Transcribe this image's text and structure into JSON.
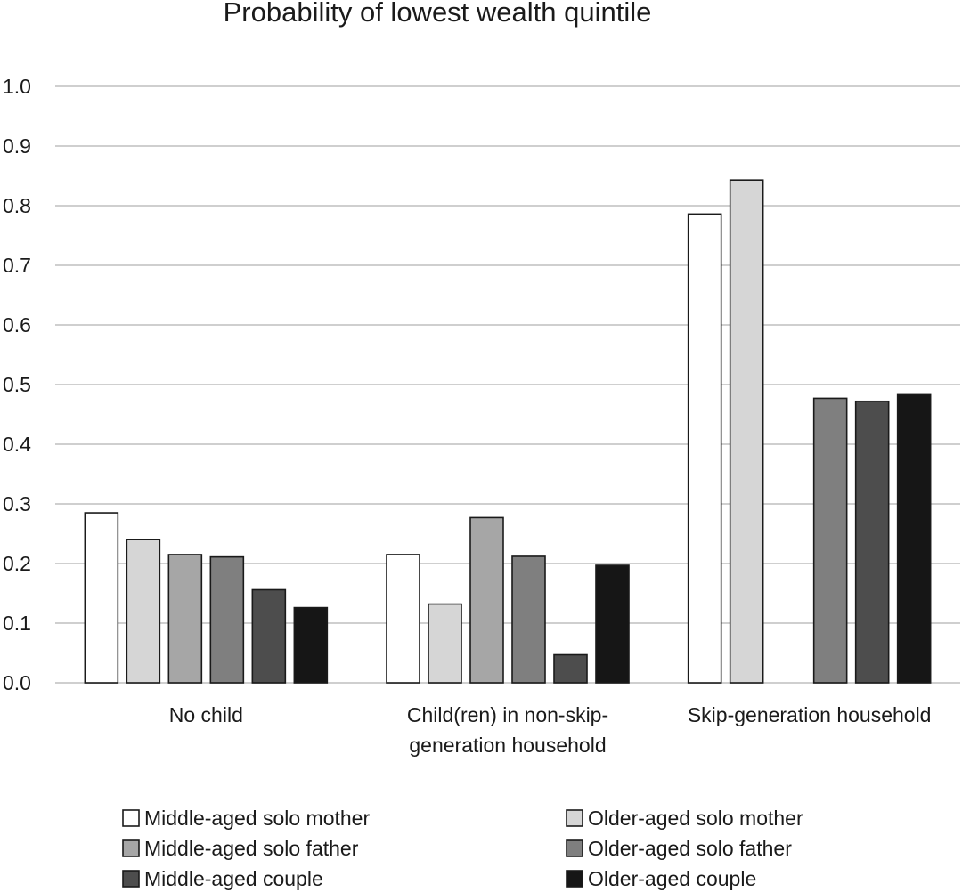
{
  "chart_data": {
    "type": "bar",
    "title": "Probability of lowest wealth quintile",
    "xlabel": "",
    "ylabel": "",
    "ylim": [
      0,
      1.0
    ],
    "yticks": [
      "0.0",
      "0.1",
      "0.2",
      "0.3",
      "0.4",
      "0.5",
      "0.6",
      "0.7",
      "0.8",
      "0.9",
      "1.0"
    ],
    "grid": true,
    "legend_position": "bottom",
    "categories": [
      [
        "No child"
      ],
      [
        "Child(ren) in non-skip-",
        "generation household"
      ],
      [
        "Skip-generation household"
      ]
    ],
    "series": [
      {
        "name": "Middle-aged solo mother",
        "color": "#ffffff",
        "values": [
          0.285,
          0.215,
          0.786
        ]
      },
      {
        "name": "Older-aged solo mother",
        "color": "#d6d6d6",
        "values": [
          0.24,
          0.132,
          0.843
        ]
      },
      {
        "name": "Middle-aged solo father",
        "color": "#a6a6a6",
        "values": [
          0.215,
          0.277,
          null
        ]
      },
      {
        "name": "Older-aged solo father",
        "color": "#7f7f7f",
        "values": [
          0.211,
          0.212,
          0.477
        ]
      },
      {
        "name": "Middle-aged couple",
        "color": "#4d4d4d",
        "values": [
          0.156,
          0.047,
          0.472
        ]
      },
      {
        "name": "Older-aged couple",
        "color": "#161616",
        "values": [
          0.126,
          0.197,
          0.483
        ]
      }
    ]
  }
}
